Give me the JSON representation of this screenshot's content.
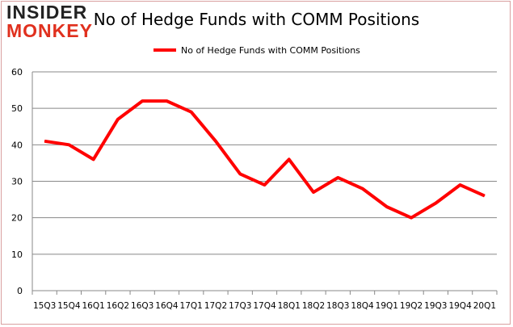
{
  "logo": {
    "line1": "INSIDER",
    "line2": "MONKEY"
  },
  "chart_data": {
    "type": "line",
    "title": "No of Hedge Funds with COMM Positions",
    "xlabel": "",
    "ylabel": "",
    "categories": [
      "15Q3",
      "15Q4",
      "16Q1",
      "16Q2",
      "16Q3",
      "16Q4",
      "17Q1",
      "17Q2",
      "17Q3",
      "17Q4",
      "18Q1",
      "18Q2",
      "18Q3",
      "18Q4",
      "19Q1",
      "19Q2",
      "19Q3",
      "19Q4",
      "20Q1"
    ],
    "series": [
      {
        "name": "No of Hedge Funds with COMM Positions",
        "color": "#ff0000",
        "values": [
          41,
          40,
          36,
          47,
          52,
          52,
          49,
          41,
          32,
          29,
          36,
          27,
          31,
          28,
          23,
          20,
          24,
          29,
          26
        ]
      }
    ],
    "ylim": [
      0,
      60
    ],
    "yticks": [
      0,
      10,
      20,
      30,
      40,
      50,
      60
    ],
    "grid": true,
    "legend": "top-center"
  }
}
